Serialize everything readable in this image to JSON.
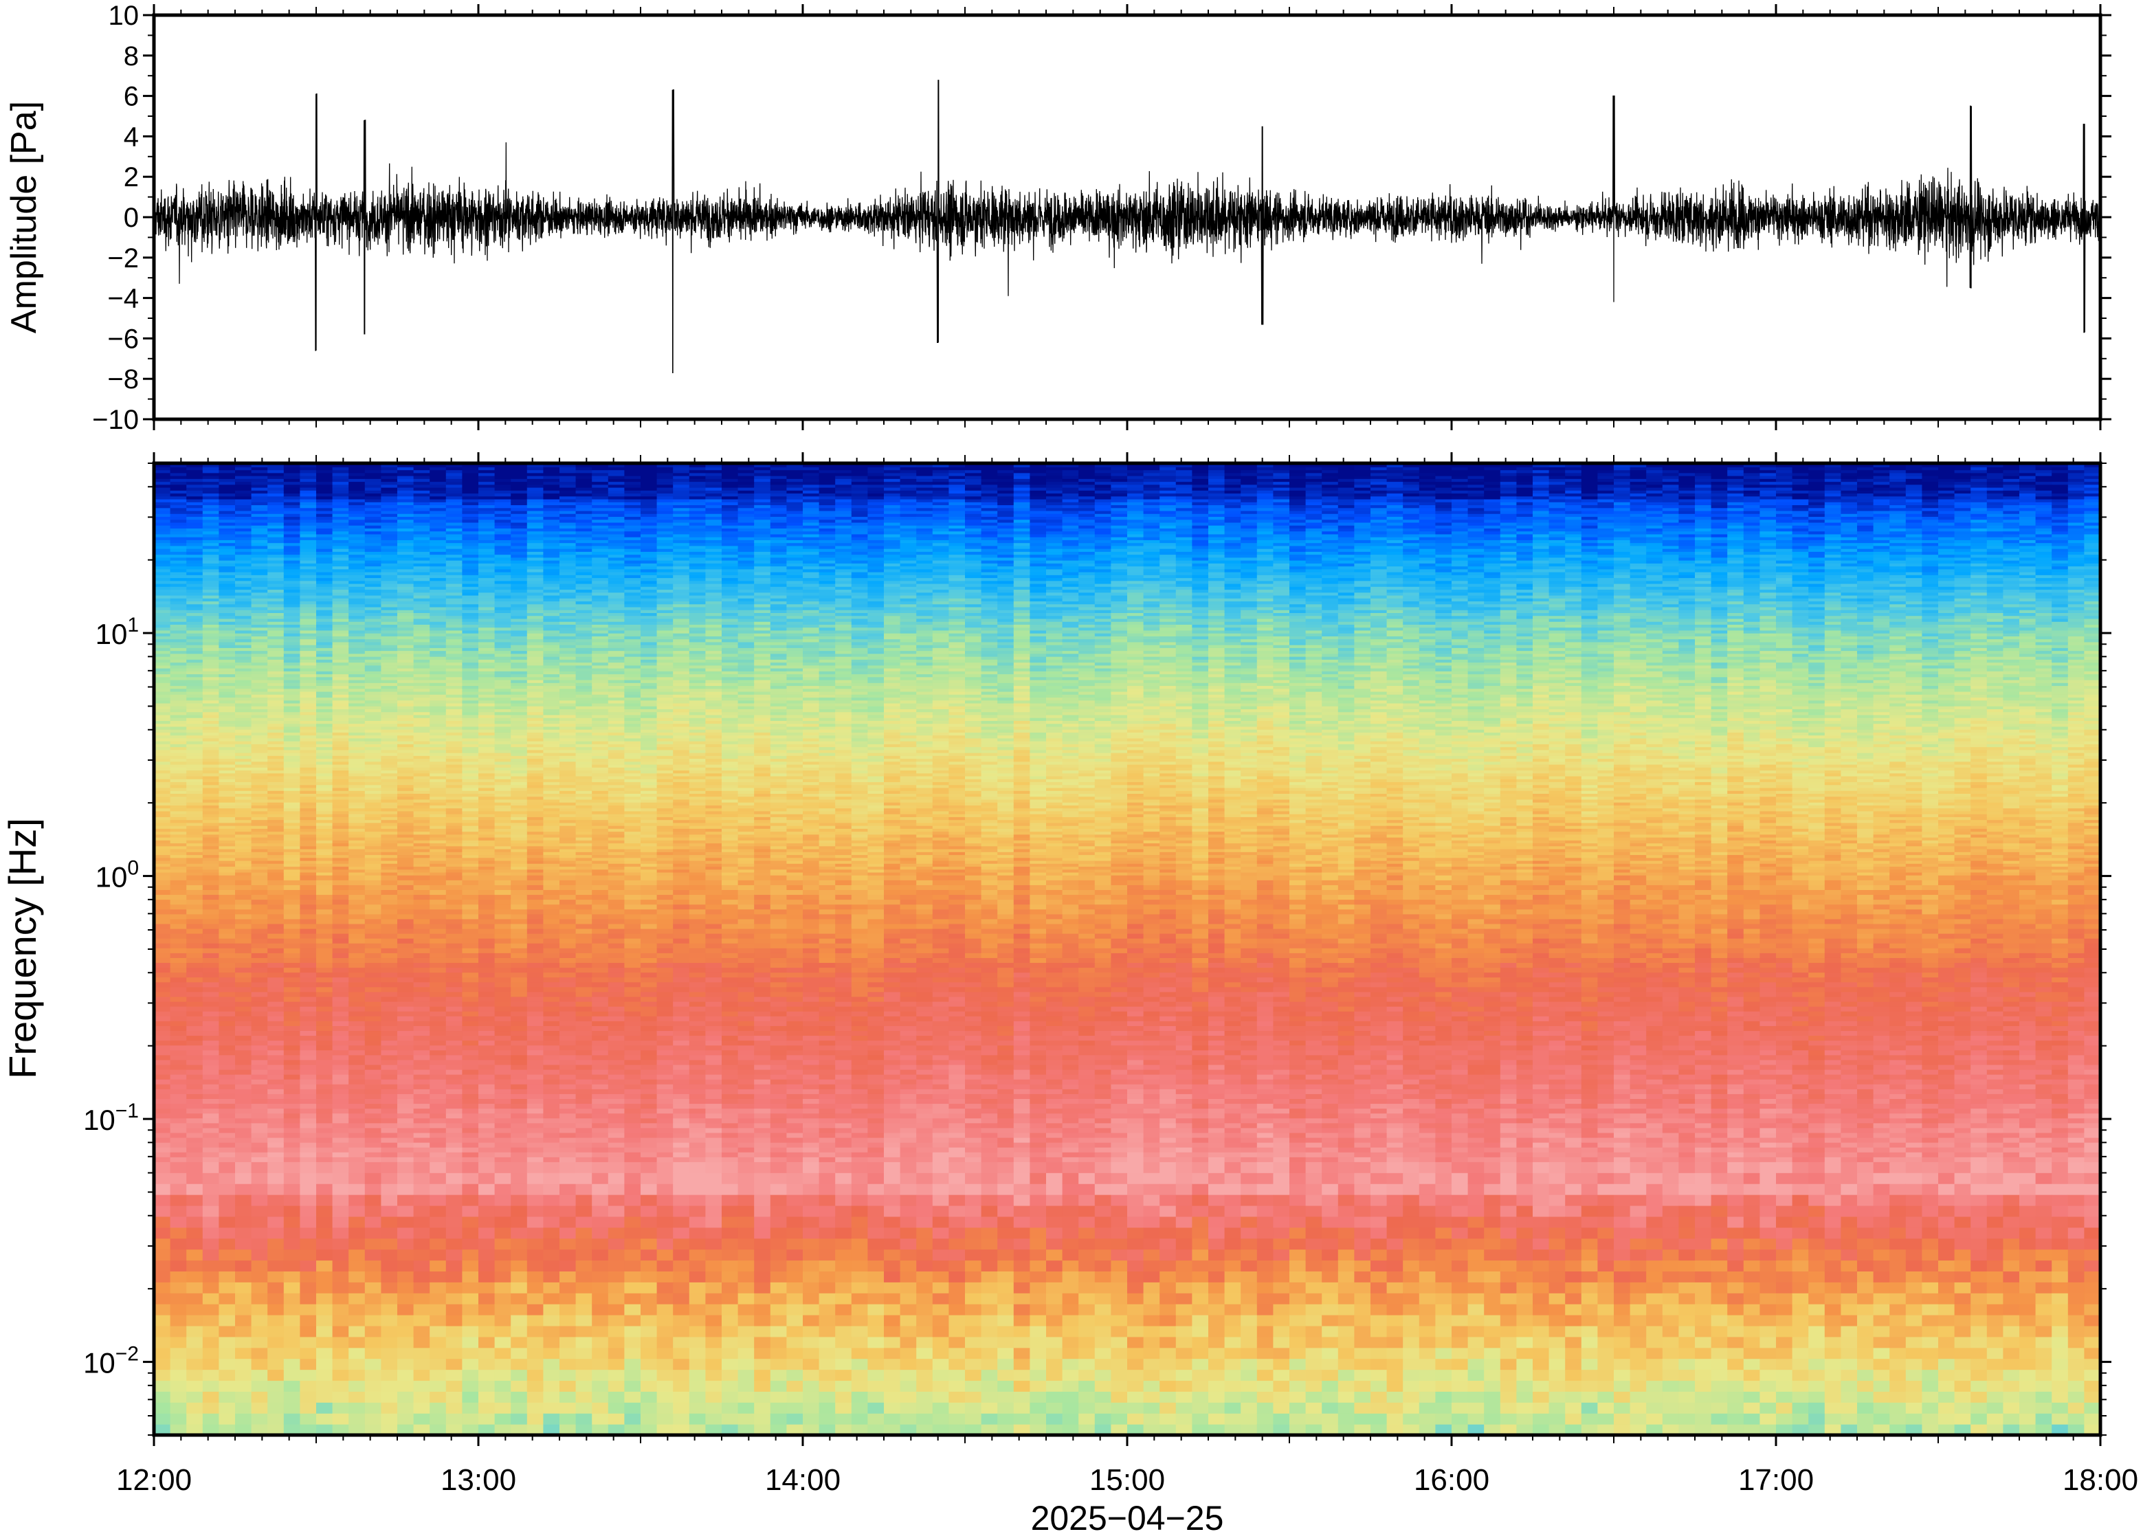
{
  "chart_data": [
    {
      "type": "line",
      "title": "",
      "xlabel": "",
      "ylabel": "Amplitude [Pa]",
      "ylim": [
        -10,
        10
      ],
      "yticks": [
        10,
        8,
        6,
        4,
        2,
        0,
        -2,
        -4,
        -6,
        -8,
        -10
      ],
      "ytick_labels": [
        "10",
        "8",
        "6",
        "4",
        "2",
        "0",
        "−2",
        "−4",
        "−6",
        "−8",
        "−10"
      ],
      "x_range": [
        "12:00",
        "18:00"
      ],
      "series": [
        {
          "values_note": "dense infrasound waveform, approx. -8 to 7 Pa",
          "envelope_peaks": [
            {
              "time": "12:30",
              "min": -6.6,
              "max": 6.1
            },
            {
              "time": "12:39",
              "min": -5.8,
              "max": 4.8
            },
            {
              "time": "13:36",
              "min": -7.7,
              "max": 6.3
            },
            {
              "time": "14:25",
              "min": -6.2,
              "max": 6.8
            },
            {
              "time": "15:25",
              "min": -5.3,
              "max": 4.5
            },
            {
              "time": "16:30",
              "min": -4.2,
              "max": 6.0
            },
            {
              "time": "17:36",
              "min": -3.5,
              "max": 5.5
            },
            {
              "time": "17:57",
              "min": -5.7,
              "max": 4.6
            }
          ]
        }
      ],
      "colors": {
        "line": "#000000"
      }
    },
    {
      "type": "heatmap",
      "title": "",
      "xlabel": "2025−04−25",
      "ylabel": "Frequency [Hz]",
      "yscale": "log",
      "ylim": [
        0.005,
        50
      ],
      "yticks": [
        {
          "value": 10,
          "base": "10",
          "exp": "1"
        },
        {
          "value": 1,
          "base": "10",
          "exp": "0"
        },
        {
          "value": 0.1,
          "base": "10",
          "exp": "−1"
        },
        {
          "value": 0.01,
          "base": "10",
          "exp": "−2"
        }
      ],
      "x_ticks": [
        "12:00",
        "13:00",
        "14:00",
        "15:00",
        "16:00",
        "17:00",
        "18:00"
      ],
      "colormap": [
        "#000a8c",
        "#0050ff",
        "#00a6ff",
        "#4dc8e6",
        "#a8e6a0",
        "#e8e88a",
        "#f5c860",
        "#f59448",
        "#ee6a50",
        "#f47a7a",
        "#f8a8a8"
      ],
      "grid": false
    }
  ]
}
